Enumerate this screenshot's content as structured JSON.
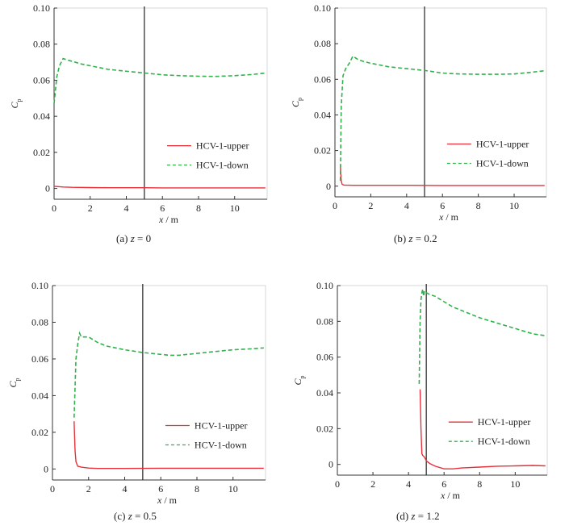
{
  "chart_data": [
    {
      "type": "line",
      "caption": {
        "label": "(a)",
        "var": "z",
        "eq": " = ",
        "value": "0"
      },
      "xlabel": {
        "var": "x",
        "unit": " / m"
      },
      "ylabel": {
        "var": "C",
        "sub": "p"
      },
      "xlim": [
        0,
        11.8
      ],
      "ylim": [
        -0.006,
        0.1
      ],
      "xticks": [
        0,
        2,
        4,
        6,
        8,
        10
      ],
      "yticks": [
        0,
        0.02,
        0.04,
        0.06,
        0.08,
        0.1
      ],
      "ytick_labels": [
        "0",
        "0.02",
        "0.04",
        "0.06",
        "0.08",
        "0.10"
      ],
      "vline": 5.0,
      "legend": {
        "position": "right-middle"
      },
      "series": [
        {
          "name": "HCV-1-upper",
          "label_main": "HCV-1",
          "label_suffix": "-upper",
          "color": "#e8303a",
          "style": "solid",
          "x": [
            0,
            0.5,
            1,
            2,
            3,
            4,
            5,
            6,
            7,
            8,
            9,
            10,
            11,
            11.7
          ],
          "y": [
            0.0012,
            0.0008,
            0.0006,
            0.0005,
            0.0004,
            0.0004,
            0.0004,
            0.0003,
            0.0003,
            0.0003,
            0.0003,
            0.0003,
            0.0003,
            0.0003
          ]
        },
        {
          "name": "HCV-1-down",
          "label_main": "HCV-1",
          "label_suffix": "-down",
          "color": "#2fb34a",
          "style": "dashed",
          "x": [
            0,
            0.15,
            0.3,
            0.5,
            0.8,
            1.0,
            1.5,
            2,
            3,
            4,
            5,
            6,
            7,
            8,
            9,
            10,
            11,
            11.7
          ],
          "y": [
            0.047,
            0.062,
            0.068,
            0.072,
            0.071,
            0.0705,
            0.069,
            0.068,
            0.066,
            0.065,
            0.064,
            0.063,
            0.0625,
            0.0622,
            0.0621,
            0.0625,
            0.0632,
            0.064
          ]
        }
      ]
    },
    {
      "type": "line",
      "caption": {
        "label": "(b)",
        "var": "z",
        "eq": " = ",
        "value": "0.2"
      },
      "xlabel": {
        "var": "x",
        "unit": " / m"
      },
      "ylabel": {
        "var": "C",
        "sub": "p"
      },
      "xlim": [
        0,
        11.8
      ],
      "ylim": [
        -0.006,
        0.1
      ],
      "xticks": [
        0,
        2,
        4,
        6,
        8,
        10
      ],
      "yticks": [
        0,
        0.02,
        0.04,
        0.06,
        0.08,
        0.1
      ],
      "ytick_labels": [
        "0",
        "0.02",
        "0.04",
        "0.06",
        "0.08",
        "0.10"
      ],
      "vline": 5.0,
      "legend": {
        "position": "right-middle"
      },
      "series": [
        {
          "name": "HCV-1-upper",
          "label_main": "HCV-1",
          "label_suffix": "-upper",
          "color": "#e8303a",
          "style": "solid",
          "x": [
            0.3,
            0.32,
            0.35,
            0.4,
            0.5,
            1,
            2,
            4,
            6,
            8,
            10,
            11.7
          ],
          "y": [
            0.012,
            0.008,
            0.003,
            0.001,
            0.0006,
            0.0005,
            0.0005,
            0.0005,
            0.0004,
            0.0004,
            0.0004,
            0.0004
          ]
        },
        {
          "name": "HCV-1-down",
          "label_main": "HCV-1",
          "label_suffix": "-down",
          "color": "#2fb34a",
          "style": "dashed",
          "x": [
            0.3,
            0.35,
            0.45,
            0.6,
            0.8,
            1.0,
            1.3,
            1.6,
            2,
            3,
            4,
            5,
            6,
            7,
            8,
            9,
            10,
            11,
            11.7
          ],
          "y": [
            0.003,
            0.045,
            0.062,
            0.066,
            0.069,
            0.073,
            0.071,
            0.07,
            0.069,
            0.067,
            0.066,
            0.065,
            0.0635,
            0.063,
            0.0628,
            0.0628,
            0.063,
            0.064,
            0.0648
          ]
        }
      ]
    },
    {
      "type": "line",
      "caption": {
        "label": "(c)",
        "var": "z",
        "eq": " = ",
        "value": "0.5"
      },
      "xlabel": {
        "var": "x",
        "unit": " / m"
      },
      "ylabel": {
        "var": "C",
        "sub": "p"
      },
      "xlim": [
        0,
        11.8
      ],
      "ylim": [
        -0.006,
        0.1
      ],
      "xticks": [
        0,
        2,
        4,
        6,
        8,
        10
      ],
      "yticks": [
        0,
        0.02,
        0.04,
        0.06,
        0.08,
        0.1
      ],
      "ytick_labels": [
        "0",
        "0.02",
        "0.04",
        "0.06",
        "0.08",
        "0.10"
      ],
      "vline": 5.0,
      "legend": {
        "position": "right-middle"
      },
      "series": [
        {
          "name": "HCV-1-upper",
          "label_main": "HCV-1",
          "label_suffix": "-upper",
          "color": "#e8303a",
          "style": "solid",
          "x": [
            1.2,
            1.25,
            1.3,
            1.4,
            1.6,
            2,
            2.5,
            3,
            4,
            6,
            8,
            10,
            11.7
          ],
          "y": [
            0.026,
            0.01,
            0.004,
            0.0015,
            0.001,
            0.0005,
            0.0003,
            0.0003,
            0.0003,
            0.0004,
            0.0004,
            0.0004,
            0.0004
          ]
        },
        {
          "name": "HCV-1-down",
          "label_main": "HCV-1",
          "label_suffix": "-down",
          "color": "#2fb34a",
          "style": "dashed",
          "x": [
            1.2,
            1.3,
            1.4,
            1.5,
            1.6,
            2,
            2.5,
            3,
            4,
            5,
            6,
            6.5,
            7,
            8,
            9,
            10,
            11,
            11.7
          ],
          "y": [
            0.028,
            0.06,
            0.068,
            0.074,
            0.072,
            0.072,
            0.069,
            0.067,
            0.065,
            0.0635,
            0.0625,
            0.062,
            0.062,
            0.063,
            0.064,
            0.065,
            0.0655,
            0.066
          ]
        }
      ]
    },
    {
      "type": "line",
      "caption": {
        "label": "(d)",
        "var": "z",
        "eq": " = ",
        "value": "1.2"
      },
      "xlabel": {
        "var": "x",
        "unit": " / m"
      },
      "ylabel": {
        "var": "C",
        "sub": "p"
      },
      "xlim": [
        0,
        11.8
      ],
      "ylim": [
        -0.006,
        0.1
      ],
      "xticks": [
        0,
        2,
        4,
        6,
        8,
        10
      ],
      "yticks": [
        0,
        0.02,
        0.04,
        0.06,
        0.08,
        0.1
      ],
      "ytick_labels": [
        "0",
        "0.02",
        "0.04",
        "0.06",
        "0.08",
        "0.10"
      ],
      "vline": 5.0,
      "legend": {
        "position": "right-middle"
      },
      "series": [
        {
          "name": "HCV-1-upper",
          "label_main": "HCV-1",
          "label_suffix": "-upper",
          "color": "#e8303a",
          "style": "solid",
          "x": [
            4.65,
            4.7,
            4.75,
            4.8,
            4.9,
            5.0,
            5.2,
            5.5,
            6,
            6.5,
            7,
            8,
            9,
            10,
            11,
            11.7
          ],
          "y": [
            0.042,
            0.02,
            0.006,
            0.005,
            0.004,
            0.002,
            0.0005,
            -0.001,
            -0.0025,
            -0.0025,
            -0.002,
            -0.0015,
            -0.001,
            -0.0008,
            -0.0006,
            -0.0008
          ]
        },
        {
          "name": "HCV-1-down",
          "label_main": "HCV-1",
          "label_suffix": "-down",
          "color": "#2fb34a",
          "style": "dashed",
          "x": [
            4.6,
            4.65,
            4.7,
            4.75,
            4.8,
            4.85,
            4.9,
            5.0,
            5.2,
            5.5,
            6,
            6.5,
            7,
            8,
            9,
            10,
            11,
            11.7
          ],
          "y": [
            0.045,
            0.08,
            0.092,
            0.096,
            0.098,
            0.094,
            0.097,
            0.096,
            0.095,
            0.094,
            0.091,
            0.088,
            0.086,
            0.082,
            0.079,
            0.076,
            0.073,
            0.072
          ]
        }
      ]
    }
  ]
}
